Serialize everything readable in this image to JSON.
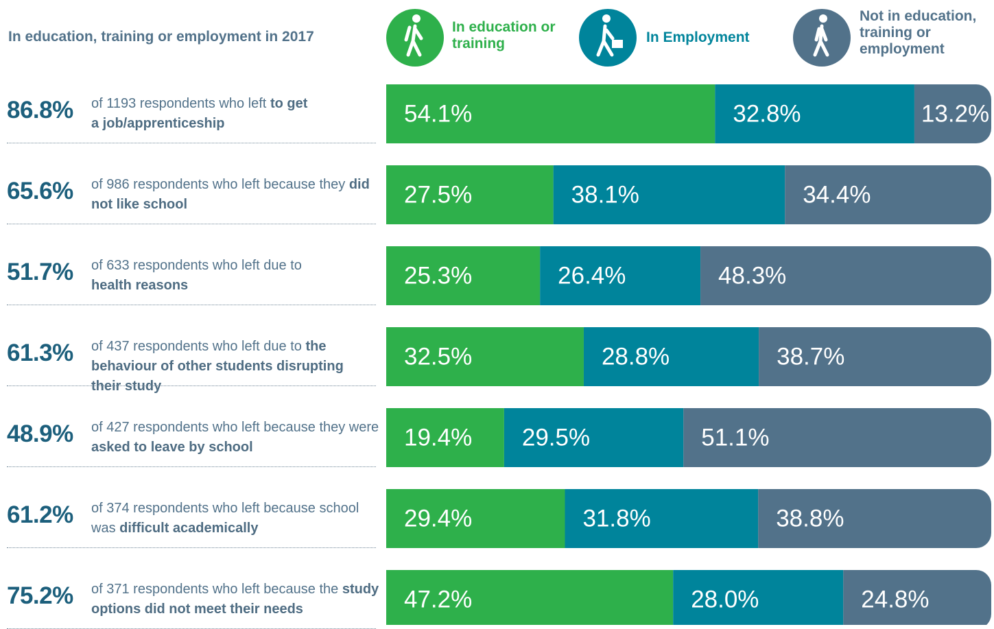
{
  "chart_data": {
    "type": "bar",
    "orientation": "horizontal",
    "stacked": true,
    "title": "In education, training or employment in 2017",
    "rows": [
      {
        "share": "86.8%",
        "text": "of 1193 respondents who left",
        "emphasis": "to get a job/apprenticeship"
      },
      {
        "share": "65.6%",
        "text": "of 986 respondents who left because they",
        "emphasis": "did not like school"
      },
      {
        "share": "51.7%",
        "text": "of 633 respondents who left due to",
        "emphasis": "health reasons"
      },
      {
        "share": "61.3%",
        "text": "of 437 respondents who left due to",
        "emphasis": "the behaviour of other students disrupting their study"
      },
      {
        "share": "48.9%",
        "text": "of 427 respondents who left because they were",
        "emphasis": "asked to leave by school"
      },
      {
        "share": "61.2%",
        "text": "of 374 respondents who left because school was",
        "emphasis": "difficult academically"
      },
      {
        "share": "75.2%",
        "text": "of 371 respondents who left because the",
        "emphasis": "study options did not meet their needs"
      }
    ],
    "xlim": [
      0,
      100
    ],
    "series": [
      {
        "name": "In education or training",
        "color": "#2eb04b",
        "values": [
          54.1,
          27.5,
          25.3,
          32.5,
          19.4,
          29.4,
          47.2
        ],
        "value_labels": [
          "54.1%",
          "27.5%",
          "25.3%",
          "32.5%",
          "19.4%",
          "29.4%",
          "47.2%"
        ]
      },
      {
        "name": "In Employment",
        "color": "#00849b",
        "values": [
          32.8,
          38.1,
          26.4,
          28.8,
          29.5,
          31.8,
          28.0
        ],
        "value_labels": [
          "32.8%",
          "38.1%",
          "26.4%",
          "28.8%",
          "29.5%",
          "31.8%",
          "28.0%"
        ]
      },
      {
        "name": "Not in education, training or employment",
        "color": "#52728a",
        "values": [
          13.2,
          34.4,
          48.3,
          38.7,
          51.1,
          38.8,
          24.8
        ],
        "value_labels": [
          "13.2%",
          "34.4%",
          "48.3%",
          "38.7%",
          "51.1%",
          "38.8%",
          "24.8%"
        ]
      }
    ]
  }
}
